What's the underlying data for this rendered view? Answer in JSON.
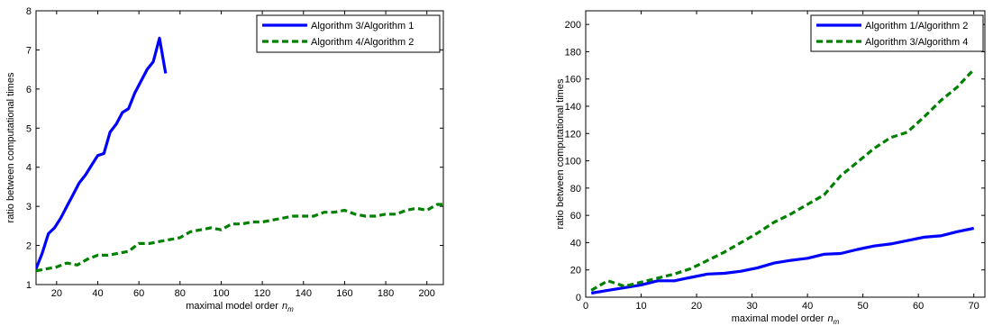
{
  "chart_data": [
    {
      "type": "line",
      "xlabel": "maximal model order",
      "xlabel_var": "n",
      "xlabel_sub": "m",
      "ylabel": "ratio between computational times",
      "xlim": [
        10,
        208
      ],
      "ylim": [
        1,
        8
      ],
      "xticks": [
        20,
        40,
        60,
        80,
        100,
        120,
        140,
        160,
        180,
        200
      ],
      "yticks": [
        1,
        2,
        3,
        4,
        5,
        6,
        7,
        8
      ],
      "legend_position": "top-right",
      "series": [
        {
          "name": "Algorithm 3/Algorithm 1",
          "color": "#0000ff",
          "style": "solid",
          "x": [
            10,
            13,
            16,
            19,
            22,
            25,
            28,
            31,
            34,
            37,
            40,
            43,
            46,
            49,
            52,
            55,
            58,
            61,
            64,
            67,
            70,
            73
          ],
          "y": [
            1.4,
            1.8,
            2.3,
            2.45,
            2.7,
            3.0,
            3.3,
            3.6,
            3.8,
            4.05,
            4.3,
            4.35,
            4.9,
            5.1,
            5.4,
            5.5,
            5.9,
            6.2,
            6.5,
            6.7,
            7.3,
            6.4
          ]
        },
        {
          "name": "Algorithm 4/Algorithm 2",
          "color": "#008000",
          "style": "dashed",
          "x": [
            10,
            15,
            20,
            25,
            30,
            35,
            40,
            45,
            50,
            55,
            60,
            65,
            70,
            75,
            80,
            85,
            90,
            95,
            100,
            105,
            110,
            115,
            120,
            125,
            130,
            135,
            140,
            145,
            150,
            155,
            160,
            165,
            170,
            175,
            180,
            185,
            190,
            195,
            200,
            205,
            208
          ],
          "y": [
            1.35,
            1.4,
            1.45,
            1.55,
            1.5,
            1.65,
            1.75,
            1.75,
            1.8,
            1.85,
            2.05,
            2.05,
            2.1,
            2.15,
            2.2,
            2.35,
            2.4,
            2.45,
            2.4,
            2.55,
            2.55,
            2.6,
            2.6,
            2.65,
            2.7,
            2.75,
            2.75,
            2.75,
            2.85,
            2.85,
            2.9,
            2.8,
            2.75,
            2.75,
            2.8,
            2.8,
            2.9,
            2.95,
            2.9,
            3.05,
            3.05
          ]
        }
      ]
    },
    {
      "type": "line",
      "xlabel": "maximal model order",
      "xlabel_var": "n",
      "xlabel_sub": "m",
      "ylabel": "ratio between computational times",
      "xlim": [
        0,
        72
      ],
      "ylim": [
        0,
        210
      ],
      "xticks": [
        0,
        10,
        20,
        30,
        40,
        50,
        60,
        70
      ],
      "yticks": [
        0,
        20,
        40,
        60,
        80,
        100,
        120,
        140,
        160,
        180,
        200
      ],
      "legend_position": "top-right",
      "series": [
        {
          "name": "Algorithm 1/Algorithm 2",
          "color": "#0000ff",
          "style": "solid",
          "x": [
            1,
            4,
            7,
            10,
            13,
            16,
            19,
            22,
            25,
            28,
            31,
            34,
            37,
            40,
            43,
            46,
            49,
            52,
            55,
            58,
            61,
            64,
            67,
            70
          ],
          "y": [
            3,
            5,
            7,
            9,
            12,
            12,
            14.5,
            17,
            17.5,
            19,
            21.5,
            25,
            27,
            28.5,
            31.5,
            32,
            35,
            37.5,
            39,
            41.5,
            44,
            45,
            48,
            50.5
          ]
        },
        {
          "name": "Algorithm 3/Algorithm 4",
          "color": "#008000",
          "style": "dashed",
          "x": [
            1,
            4,
            7,
            10,
            13,
            16,
            19,
            22,
            25,
            28,
            31,
            34,
            37,
            40,
            43,
            46,
            49,
            52,
            55,
            58,
            61,
            64,
            67,
            70
          ],
          "y": [
            5,
            12,
            8,
            11,
            14,
            17,
            21,
            27,
            33,
            40,
            47,
            55,
            61,
            68,
            75,
            89,
            99,
            109,
            117,
            121,
            132,
            144,
            154,
            167
          ]
        }
      ]
    }
  ]
}
